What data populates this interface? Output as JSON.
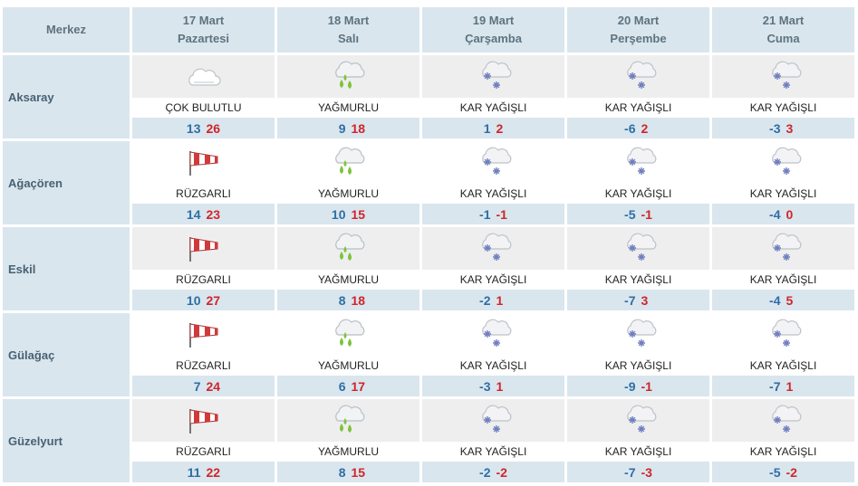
{
  "header": {
    "region_label": "Merkez",
    "days": [
      {
        "date": "17 Mart",
        "weekday": "Pazartesi"
      },
      {
        "date": "18 Mart",
        "weekday": "Salı"
      },
      {
        "date": "19 Mart",
        "weekday": "Çarşamba"
      },
      {
        "date": "20 Mart",
        "weekday": "Perşembe"
      },
      {
        "date": "21 Mart",
        "weekday": "Cuma"
      }
    ]
  },
  "colors": {
    "header_bg": "#d9e6ee",
    "min_temp": "#2d6ea5",
    "max_temp": "#d0252a",
    "rain_drop": "#7cc43a",
    "snow_flake": "#6f7fc0"
  },
  "rows": [
    {
      "city": "Aksaray",
      "days": [
        {
          "icon": "cloudy-icon",
          "label": "ÇOK BULUTLU",
          "min": "13",
          "max": "26"
        },
        {
          "icon": "rain-icon",
          "label": "YAĞMURLU",
          "min": "9",
          "max": "18"
        },
        {
          "icon": "snow-icon",
          "label": "KAR YAĞIŞLI",
          "min": "1",
          "max": "2"
        },
        {
          "icon": "snow-icon",
          "label": "KAR YAĞIŞLI",
          "min": "-6",
          "max": "2"
        },
        {
          "icon": "snow-icon",
          "label": "KAR YAĞIŞLI",
          "min": "-3",
          "max": "3"
        }
      ]
    },
    {
      "city": "Ağaçören",
      "days": [
        {
          "icon": "windsock-icon",
          "label": "RÜZGARLI",
          "min": "14",
          "max": "23"
        },
        {
          "icon": "rain-icon",
          "label": "YAĞMURLU",
          "min": "10",
          "max": "15"
        },
        {
          "icon": "snow-icon",
          "label": "KAR YAĞIŞLI",
          "min": "-1",
          "max": "-1"
        },
        {
          "icon": "snow-icon",
          "label": "KAR YAĞIŞLI",
          "min": "-5",
          "max": "-1"
        },
        {
          "icon": "snow-icon",
          "label": "KAR YAĞIŞLI",
          "min": "-4",
          "max": "0"
        }
      ]
    },
    {
      "city": "Eskil",
      "days": [
        {
          "icon": "windsock-icon",
          "label": "RÜZGARLI",
          "min": "10",
          "max": "27"
        },
        {
          "icon": "rain-icon",
          "label": "YAĞMURLU",
          "min": "8",
          "max": "18"
        },
        {
          "icon": "snow-icon",
          "label": "KAR YAĞIŞLI",
          "min": "-2",
          "max": "1"
        },
        {
          "icon": "snow-icon",
          "label": "KAR YAĞIŞLI",
          "min": "-7",
          "max": "3"
        },
        {
          "icon": "snow-icon",
          "label": "KAR YAĞIŞLI",
          "min": "-4",
          "max": "5"
        }
      ]
    },
    {
      "city": "Gülağaç",
      "days": [
        {
          "icon": "windsock-icon",
          "label": "RÜZGARLI",
          "min": "7",
          "max": "24"
        },
        {
          "icon": "rain-icon",
          "label": "YAĞMURLU",
          "min": "6",
          "max": "17"
        },
        {
          "icon": "snow-icon",
          "label": "KAR YAĞIŞLI",
          "min": "-3",
          "max": "1"
        },
        {
          "icon": "snow-icon",
          "label": "KAR YAĞIŞLI",
          "min": "-9",
          "max": "-1"
        },
        {
          "icon": "snow-icon",
          "label": "KAR YAĞIŞLI",
          "min": "-7",
          "max": "1"
        }
      ]
    },
    {
      "city": "Güzelyurt",
      "days": [
        {
          "icon": "windsock-icon",
          "label": "RÜZGARLI",
          "min": "11",
          "max": "22"
        },
        {
          "icon": "rain-icon",
          "label": "YAĞMURLU",
          "min": "8",
          "max": "15"
        },
        {
          "icon": "snow-icon",
          "label": "KAR YAĞIŞLI",
          "min": "-2",
          "max": "-2"
        },
        {
          "icon": "snow-icon",
          "label": "KAR YAĞIŞLI",
          "min": "-7",
          "max": "-3"
        },
        {
          "icon": "snow-icon",
          "label": "KAR YAĞIŞLI",
          "min": "-5",
          "max": "-2"
        }
      ]
    }
  ]
}
